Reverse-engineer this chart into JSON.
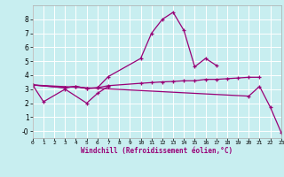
{
  "xlabel": "Windchill (Refroidissement éolien,°C)",
  "background_color": "#c8eef0",
  "grid_color": "#ffffff",
  "line_color": "#990077",
  "xlim": [
    0,
    23
  ],
  "ylim": [
    -0.5,
    9.0
  ],
  "yticks": [
    0,
    1,
    2,
    3,
    4,
    5,
    6,
    7,
    8
  ],
  "ytick_labels": [
    "-0",
    "1",
    "2",
    "3",
    "4",
    "5",
    "6",
    "7",
    "8"
  ],
  "xticks": [
    0,
    1,
    2,
    3,
    4,
    5,
    6,
    7,
    8,
    9,
    10,
    11,
    12,
    13,
    14,
    15,
    16,
    17,
    18,
    19,
    20,
    21,
    22,
    23
  ],
  "series": [
    {
      "x": [
        0,
        1,
        3,
        5,
        6,
        7
      ],
      "y": [
        3.3,
        2.1,
        3.0,
        2.0,
        2.7,
        3.2
      ]
    },
    {
      "x": [
        0,
        3,
        4,
        5,
        6,
        7,
        10,
        11,
        12,
        13,
        14,
        15,
        16,
        17,
        18,
        19,
        20,
        21
      ],
      "y": [
        3.3,
        3.1,
        3.2,
        3.05,
        3.1,
        3.25,
        3.42,
        3.47,
        3.52,
        3.55,
        3.6,
        3.6,
        3.7,
        3.7,
        3.75,
        3.8,
        3.85,
        3.85
      ]
    },
    {
      "x": [
        0,
        3,
        4,
        5,
        6,
        7,
        10,
        11,
        12,
        13,
        14,
        15,
        16,
        17
      ],
      "y": [
        3.3,
        3.1,
        3.2,
        3.05,
        3.1,
        3.9,
        5.2,
        7.0,
        8.0,
        8.5,
        7.2,
        4.6,
        5.2,
        4.7
      ]
    },
    {
      "x": [
        0,
        20,
        21,
        22,
        23
      ],
      "y": [
        3.3,
        2.5,
        3.2,
        1.7,
        -0.1
      ]
    }
  ]
}
